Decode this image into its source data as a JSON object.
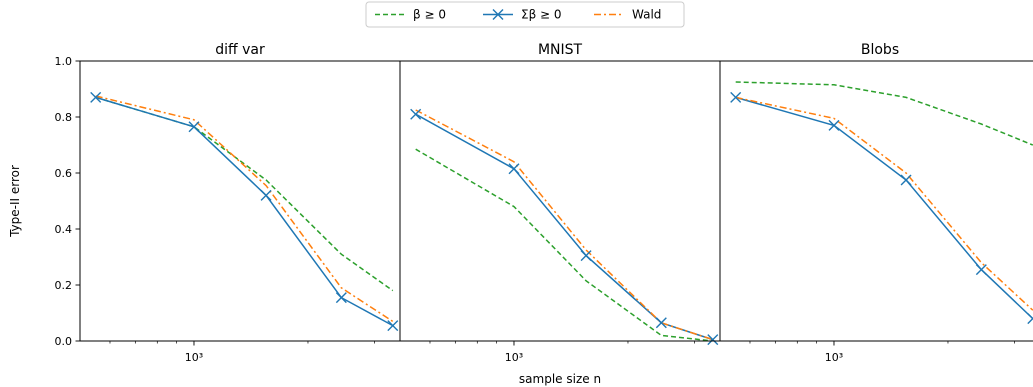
{
  "figure": {
    "xlabel": "sample size n",
    "ylabel": "Type-II error"
  },
  "legend": {
    "placement": "top-center",
    "entries": [
      {
        "label": "β ≥ 0",
        "color": "#2ca02c",
        "style": "dashed",
        "marker": "none"
      },
      {
        "label": "Σβ ≥ 0",
        "color": "#1f77b4",
        "style": "solid",
        "marker": "x"
      },
      {
        "label": "Wald",
        "color": "#ff7f0e",
        "style": "dashdot",
        "marker": "none"
      }
    ]
  },
  "chart_data": [
    {
      "type": "line",
      "title": "diff var",
      "xscale": "log",
      "xlim": [
        500,
        3500
      ],
      "ylim": [
        0,
        1
      ],
      "xticks": [
        {
          "value": 1000,
          "label": "10³"
        }
      ],
      "yticks": [
        {
          "value": 0.0,
          "label": "0.0"
        },
        {
          "value": 0.2,
          "label": "0.2"
        },
        {
          "value": 0.4,
          "label": "0.4"
        },
        {
          "value": 0.6,
          "label": "0.6"
        },
        {
          "value": 0.8,
          "label": "0.8"
        },
        {
          "value": 1.0,
          "label": "1.0"
        }
      ],
      "x": [
        550,
        1000,
        1550,
        2450,
        3350
      ],
      "series": [
        {
          "name": "β ≥ 0",
          "values": [
            0.87,
            0.765,
            0.575,
            0.31,
            0.18
          ]
        },
        {
          "name": "Σβ ≥ 0",
          "values": [
            0.87,
            0.765,
            0.52,
            0.155,
            0.055
          ]
        },
        {
          "name": "Wald",
          "values": [
            0.875,
            0.79,
            0.555,
            0.19,
            0.07
          ]
        }
      ]
    },
    {
      "type": "line",
      "title": "MNIST",
      "xscale": "log",
      "xlim": [
        500,
        3500
      ],
      "ylim": [
        0,
        1
      ],
      "xticks": [
        {
          "value": 1000,
          "label": "10³"
        }
      ],
      "x": [
        550,
        1000,
        1550,
        2450,
        3350
      ],
      "series": [
        {
          "name": "β ≥ 0",
          "values": [
            0.685,
            0.48,
            0.215,
            0.02,
            0.0
          ]
        },
        {
          "name": "Σβ ≥ 0",
          "values": [
            0.81,
            0.615,
            0.305,
            0.065,
            0.005
          ]
        },
        {
          "name": "Wald",
          "values": [
            0.825,
            0.64,
            0.325,
            0.065,
            0.005
          ]
        }
      ]
    },
    {
      "type": "line",
      "title": "Blobs",
      "xscale": "log",
      "xlim": [
        500,
        3500
      ],
      "ylim": [
        0,
        1
      ],
      "xticks": [
        {
          "value": 1000,
          "label": "10³"
        }
      ],
      "x": [
        550,
        1000,
        1550,
        2450,
        3350
      ],
      "series": [
        {
          "name": "β ≥ 0",
          "values": [
            0.925,
            0.915,
            0.87,
            0.775,
            0.7
          ]
        },
        {
          "name": "Σβ ≥ 0",
          "values": [
            0.87,
            0.77,
            0.575,
            0.255,
            0.08
          ]
        },
        {
          "name": "Wald",
          "values": [
            0.87,
            0.795,
            0.6,
            0.28,
            0.11
          ]
        }
      ]
    }
  ]
}
